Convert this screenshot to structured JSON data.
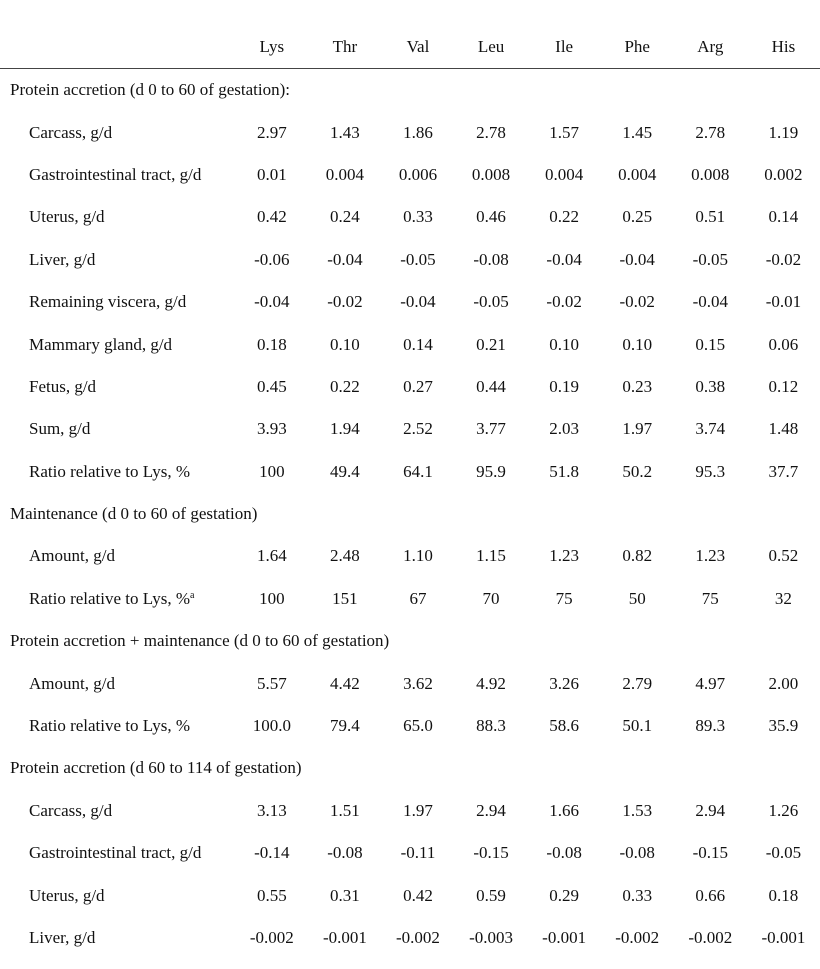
{
  "table": {
    "columns": [
      "Lys",
      "Thr",
      "Val",
      "Leu",
      "Ile",
      "Phe",
      "Arg",
      "His"
    ],
    "sections": [
      {
        "title": "Protein accretion (d 0 to 60 of gestation):",
        "rows": [
          {
            "label": "Carcass, g/d",
            "values": [
              "2.97",
              "1.43",
              "1.86",
              "2.78",
              "1.57",
              "1.45",
              "2.78",
              "1.19"
            ]
          },
          {
            "label": "Gastrointestinal tract, g/d",
            "values": [
              "0.01",
              "0.004",
              "0.006",
              "0.008",
              "0.004",
              "0.004",
              "0.008",
              "0.002"
            ]
          },
          {
            "label": "Uterus, g/d",
            "values": [
              "0.42",
              "0.24",
              "0.33",
              "0.46",
              "0.22",
              "0.25",
              "0.51",
              "0.14"
            ]
          },
          {
            "label": "Liver, g/d",
            "values": [
              "-0.06",
              "-0.04",
              "-0.05",
              "-0.08",
              "-0.04",
              "-0.04",
              "-0.05",
              "-0.02"
            ]
          },
          {
            "label": "Remaining viscera, g/d",
            "values": [
              "-0.04",
              "-0.02",
              "-0.04",
              "-0.05",
              "-0.02",
              "-0.02",
              "-0.04",
              "-0.01"
            ]
          },
          {
            "label": "Mammary gland, g/d",
            "values": [
              "0.18",
              "0.10",
              "0.14",
              "0.21",
              "0.10",
              "0.10",
              "0.15",
              "0.06"
            ]
          },
          {
            "label": "Fetus, g/d",
            "values": [
              "0.45",
              "0.22",
              "0.27",
              "0.44",
              "0.19",
              "0.23",
              "0.38",
              "0.12"
            ]
          },
          {
            "label": "Sum, g/d",
            "values": [
              "3.93",
              "1.94",
              "2.52",
              "3.77",
              "2.03",
              "1.97",
              "3.74",
              "1.48"
            ]
          },
          {
            "label": "Ratio relative to Lys, %",
            "values": [
              "100",
              "49.4",
              "64.1",
              "95.9",
              "51.8",
              "50.2",
              "95.3",
              "37.7"
            ]
          }
        ]
      },
      {
        "title": "Maintenance (d 0 to 60 of gestation)",
        "rows": [
          {
            "label": "Amount, g/d",
            "values": [
              "1.64",
              "2.48",
              "1.10",
              "1.15",
              "1.23",
              "0.82",
              "1.23",
              "0.52"
            ]
          },
          {
            "label": "Ratio relative to Lys, %",
            "sup": "a",
            "values": [
              "100",
              "151",
              "67",
              "70",
              "75",
              "50",
              "75",
              "32"
            ]
          }
        ]
      },
      {
        "title": "Protein accretion + maintenance (d 0 to 60 of gestation)",
        "rows": [
          {
            "label": "Amount, g/d",
            "values": [
              "5.57",
              "4.42",
              "3.62",
              "4.92",
              "3.26",
              "2.79",
              "4.97",
              "2.00"
            ]
          },
          {
            "label": "Ratio relative to Lys, %",
            "values": [
              "100.0",
              "79.4",
              "65.0",
              "88.3",
              "58.6",
              "50.1",
              "89.3",
              "35.9"
            ]
          }
        ]
      },
      {
        "title": "Protein accretion (d 60 to 114 of gestation)",
        "rows": [
          {
            "label": "Carcass, g/d",
            "values": [
              "3.13",
              "1.51",
              "1.97",
              "2.94",
              "1.66",
              "1.53",
              "2.94",
              "1.26"
            ]
          },
          {
            "label": "Gastrointestinal tract, g/d",
            "values": [
              "-0.14",
              "-0.08",
              "-0.11",
              "-0.15",
              "-0.08",
              "-0.08",
              "-0.15",
              "-0.05"
            ]
          },
          {
            "label": "Uterus, g/d",
            "values": [
              "0.55",
              "0.31",
              "0.42",
              "0.59",
              "0.29",
              "0.33",
              "0.66",
              "0.18"
            ]
          },
          {
            "label": "Liver, g/d",
            "values": [
              "-0.002",
              "-0.001",
              "-0.002",
              "-0.003",
              "-0.001",
              "-0.002",
              "-0.002",
              "-0.001"
            ]
          }
        ]
      }
    ]
  }
}
